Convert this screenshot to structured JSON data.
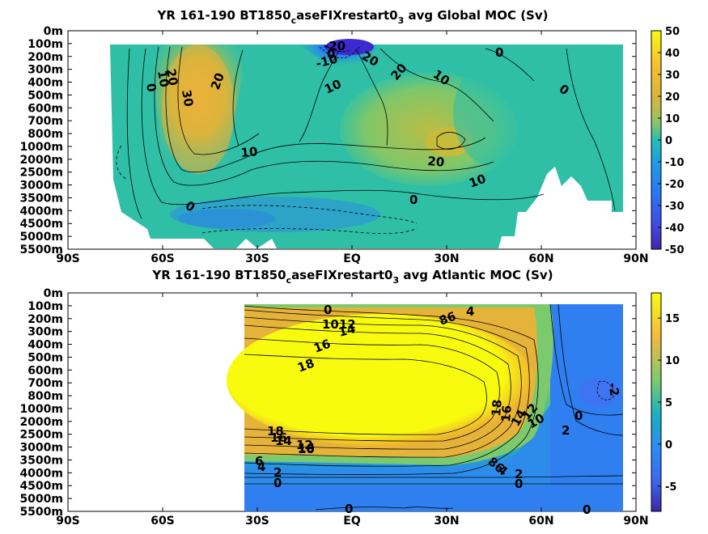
{
  "chart_data": [
    {
      "type": "heatmap",
      "title": "YR 161-190 BT1850",
      "title_sub": "c",
      "title_mid": "aseFIXrestart0",
      "title_sub2": "3",
      "title_end": " avg  Global MOC (Sv)",
      "x_ticks": [
        "90S",
        "60S",
        "30S",
        "EQ",
        "30N",
        "60N",
        "90N"
      ],
      "x_values": [
        -90,
        -60,
        -30,
        0,
        30,
        60,
        90
      ],
      "y_ticks": [
        "0m",
        "100m",
        "200m",
        "300m",
        "400m",
        "500m",
        "600m",
        "700m",
        "800m",
        "1000m",
        "2000m",
        "2500m",
        "3000m",
        "3500m",
        "4000m",
        "4500m",
        "5000m",
        "5500m"
      ],
      "colorbar": {
        "ticks": [
          "50",
          "40",
          "30",
          "20",
          "10",
          "0",
          "-10",
          "-20",
          "-30",
          "-40",
          "-50"
        ],
        "values": [
          50,
          40,
          30,
          20,
          10,
          0,
          -10,
          -20,
          -30,
          -40,
          -50
        ],
        "range": [
          -50,
          50
        ]
      },
      "contour_labels": [
        "20",
        "10",
        "0",
        "30",
        "20",
        "-10",
        "0",
        "-20",
        "20",
        "10",
        "20",
        "10",
        "0",
        "10",
        "20",
        "10",
        "0",
        "0",
        "0"
      ],
      "features": [
        {
          "name": "southern-overturning-cell",
          "lat": -50,
          "value": 32
        },
        {
          "name": "equatorial-negative-cell",
          "lat": -5,
          "value": -45
        },
        {
          "name": "northern-overturning-cell",
          "lat": 30,
          "value": 22
        },
        {
          "name": "abyssal-cell",
          "lat": -10,
          "value": -5
        }
      ]
    },
    {
      "type": "heatmap",
      "title": "YR 161-190 BT1850",
      "title_sub": "c",
      "title_mid": "aseFIXrestart0",
      "title_sub2": "3",
      "title_end": " avg  Atlantic MOC (Sv)",
      "x_ticks": [
        "90S",
        "60S",
        "30S",
        "EQ",
        "30N",
        "60N",
        "90N"
      ],
      "x_values": [
        -90,
        -60,
        -30,
        0,
        30,
        60,
        90
      ],
      "y_ticks": [
        "0m",
        "100m",
        "200m",
        "300m",
        "400m",
        "500m",
        "600m",
        "700m",
        "800m",
        "1000m",
        "2000m",
        "2500m",
        "3000m",
        "3500m",
        "4000m",
        "4500m",
        "5000m",
        "5500m"
      ],
      "colorbar": {
        "ticks": [
          "15",
          "10",
          "5",
          "0",
          "-5"
        ],
        "values": [
          15,
          10,
          5,
          0,
          -5
        ],
        "range": [
          -8,
          18
        ]
      },
      "contour_labels": [
        "0",
        "1012",
        "14",
        "16",
        "18",
        "86",
        "4",
        "18",
        "16",
        "14",
        "12",
        "10",
        "2",
        "0",
        "-2",
        "18",
        "16",
        "14",
        "12",
        "10",
        "16",
        "6",
        "4",
        "2",
        "0",
        "86",
        "4",
        "2",
        "0",
        "0",
        "0"
      ],
      "features": [
        {
          "name": "amoc-upper-cell",
          "lat": 10,
          "value": 19
        },
        {
          "name": "aabw-cell",
          "lat": 10,
          "value": -2
        }
      ]
    }
  ]
}
